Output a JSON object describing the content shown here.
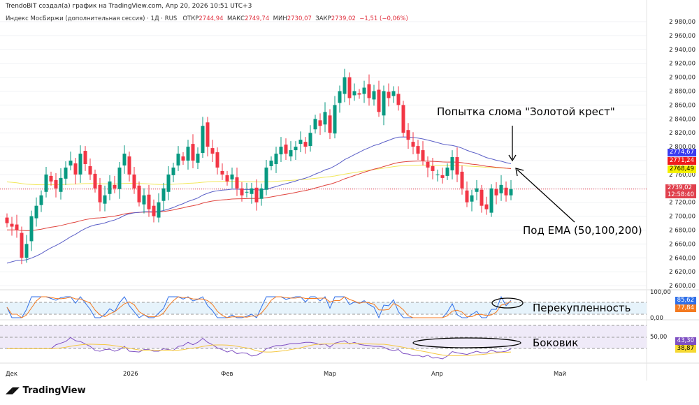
{
  "credit": "TrendoBIT создал(а) график на TradingView.com, Апр 20, 2026 10:51 UTC+3",
  "legend": {
    "symbol": "Индекс МосБиржи (дополнительная сессия) · 1Д · RUS",
    "open_label": "ОТКР",
    "open": "2744,94",
    "high_label": "МАКС",
    "high": "2749,74",
    "low_label": "МИН",
    "low": "2730,07",
    "close_label": "ЗАКР",
    "close": "2739,02",
    "change": "−1,51 (−0,06%)"
  },
  "price_labels": {
    "ema50": "2774,67",
    "ema100": "2771,24",
    "ema200": "2768,49",
    "last": "2739,02",
    "countdown": "12:58:40",
    "osc1_a": "85,62",
    "osc1_b": "77,84",
    "osc2_a": "43,30",
    "osc2_b": "38,87"
  },
  "osc_ticks": {
    "p1_top": "100,00",
    "p1_bottom": "0,00",
    "p2_mid": "50,00"
  },
  "annotations": {
    "golden_cross": "Попытка слома \"Золотой крест\"",
    "under_ema": "Под EMA (50,100,200)",
    "overbought": "Перекупленность",
    "sideways": "Боковик"
  },
  "logo": "TradingView",
  "colors": {
    "up": "#089981",
    "down": "#f23645",
    "ema50": "#5b5fc7",
    "ema100": "#e0443e",
    "ema200": "#f2e85c"
  },
  "chart_data": {
    "type": "candlestick",
    "title": "Индекс МосБиржи · 1Д",
    "ylim": [
      2590,
      2990
    ],
    "y_ticks": [
      2600,
      2620,
      2640,
      2660,
      2680,
      2700,
      2720,
      2740,
      2760,
      2780,
      2800,
      2820,
      2840,
      2860,
      2880,
      2900,
      2920,
      2940,
      2960,
      2980
    ],
    "x_ticks": [
      {
        "label": "Дек",
        "i": 0
      },
      {
        "label": "2026",
        "i": 24
      },
      {
        "label": "Фев",
        "i": 44
      },
      {
        "label": "Мар",
        "i": 65
      },
      {
        "label": "Апр",
        "i": 87
      },
      {
        "label": "Май",
        "i": 112
      }
    ],
    "ema_seed": {
      "ema50": 2630,
      "ema100": 2680,
      "ema200": 2750
    },
    "closes": [
      2690,
      2685,
      2680,
      2640,
      2660,
      2700,
      2715,
      2730,
      2760,
      2750,
      2740,
      2755,
      2770,
      2780,
      2760,
      2790,
      2775,
      2760,
      2740,
      2720,
      2730,
      2750,
      2740,
      2770,
      2790,
      2760,
      2740,
      2720,
      2730,
      2710,
      2700,
      2720,
      2740,
      2760,
      2770,
      2790,
      2780,
      2800,
      2780,
      2790,
      2830,
      2800,
      2790,
      2770,
      2760,
      2750,
      2760,
      2740,
      2730,
      2735,
      2740,
      2720,
      2740,
      2770,
      2780,
      2790,
      2800,
      2790,
      2795,
      2800,
      2810,
      2800,
      2820,
      2840,
      2830,
      2850,
      2820,
      2860,
      2880,
      2900,
      2870,
      2880,
      2875,
      2885,
      2870,
      2880,
      2850,
      2880,
      2870,
      2880,
      2860,
      2820,
      2810,
      2800,
      2790,
      2780,
      2770,
      2765,
      2760,
      2755,
      2770,
      2785,
      2760,
      2740,
      2720,
      2730,
      2740,
      2715,
      2710,
      2740,
      2730,
      2745,
      2730,
      2739
    ]
  }
}
